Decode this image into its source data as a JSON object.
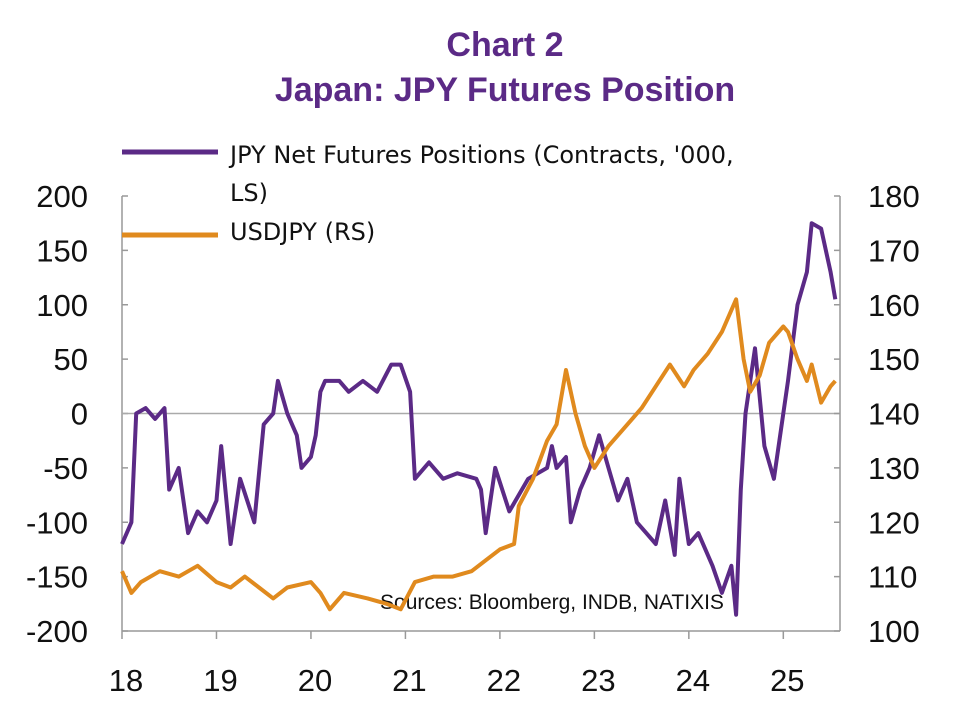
{
  "chart_data": {
    "type": "line",
    "title": "Chart 2",
    "subtitle": "Japan: JPY Futures Position",
    "annotation": "Sources: Bloomberg, INDB, NATIXIS",
    "xlim": [
      18,
      25.6
    ],
    "xticks": [
      18,
      19,
      20,
      21,
      22,
      23,
      24,
      25
    ],
    "ylim": [
      -200,
      200
    ],
    "yticks": [
      -200,
      -150,
      -100,
      -50,
      0,
      50,
      100,
      150,
      200
    ],
    "y2lim": [
      100,
      180
    ],
    "y2ticks": [
      100,
      110,
      120,
      130,
      140,
      150,
      160,
      170,
      180
    ],
    "zero_line": true,
    "series": [
      {
        "name": "JPY Net Futures Positions (Contracts, '000, LS)",
        "color": "#5b2a86",
        "x": [
          18.0,
          18.1,
          18.15,
          18.25,
          18.35,
          18.45,
          18.5,
          18.6,
          18.7,
          18.8,
          18.9,
          19.0,
          19.05,
          19.15,
          19.25,
          19.4,
          19.5,
          19.6,
          19.65,
          19.75,
          19.85,
          19.9,
          20.0,
          20.05,
          20.1,
          20.15,
          20.3,
          20.4,
          20.55,
          20.7,
          20.85,
          20.95,
          21.05,
          21.1,
          21.25,
          21.4,
          21.55,
          21.75,
          21.8,
          21.85,
          21.95,
          22.1,
          22.3,
          22.5,
          22.55,
          22.6,
          22.7,
          22.75,
          22.85,
          22.95,
          23.05,
          23.15,
          23.25,
          23.35,
          23.45,
          23.55,
          23.65,
          23.75,
          23.85,
          23.9,
          24.0,
          24.1,
          24.25,
          24.35,
          24.45,
          24.5,
          24.55,
          24.6,
          24.7,
          24.8,
          24.9,
          25.0,
          25.05,
          25.15,
          25.25,
          25.3,
          25.4,
          25.5,
          25.55
        ],
        "values": [
          -120,
          -100,
          0,
          5,
          -5,
          5,
          -70,
          -50,
          -110,
          -90,
          -100,
          -80,
          -30,
          -120,
          -60,
          -100,
          -10,
          0,
          30,
          0,
          -20,
          -50,
          -40,
          -20,
          20,
          30,
          30,
          20,
          30,
          20,
          45,
          45,
          20,
          -60,
          -45,
          -60,
          -55,
          -60,
          -70,
          -110,
          -50,
          -90,
          -60,
          -50,
          -30,
          -50,
          -40,
          -100,
          -70,
          -50,
          -20,
          -50,
          -80,
          -60,
          -100,
          -110,
          -120,
          -80,
          -130,
          -60,
          -120,
          -110,
          -140,
          -165,
          -140,
          -185,
          -70,
          0,
          60,
          -30,
          -60,
          0,
          30,
          100,
          130,
          175,
          170,
          130,
          105
        ]
      },
      {
        "name": "USDJPY (RS)",
        "color": "#e08a1e",
        "axis": "y2",
        "x": [
          18.0,
          18.1,
          18.2,
          18.4,
          18.6,
          18.8,
          19.0,
          19.15,
          19.3,
          19.45,
          19.6,
          19.75,
          20.0,
          20.1,
          20.2,
          20.35,
          20.6,
          20.8,
          20.95,
          21.1,
          21.3,
          21.5,
          21.7,
          21.85,
          22.0,
          22.15,
          22.2,
          22.35,
          22.5,
          22.6,
          22.7,
          22.8,
          22.9,
          23.0,
          23.15,
          23.3,
          23.5,
          23.65,
          23.8,
          23.95,
          24.05,
          24.2,
          24.35,
          24.5,
          24.58,
          24.65,
          24.75,
          24.85,
          25.0,
          25.05,
          25.15,
          25.25,
          25.3,
          25.4,
          25.5,
          25.55
        ],
        "values": [
          111,
          107,
          109,
          111,
          110,
          112,
          109,
          108,
          110,
          108,
          106,
          108,
          109,
          107,
          104,
          107,
          106,
          105,
          104,
          109,
          110,
          110,
          111,
          113,
          115,
          116,
          123,
          128,
          135,
          138,
          148,
          140,
          134,
          130,
          134,
          137,
          141,
          145,
          149,
          145,
          148,
          151,
          155,
          161,
          150,
          144,
          147,
          153,
          156,
          155,
          150,
          146,
          149,
          142,
          145,
          146
        ]
      }
    ]
  }
}
